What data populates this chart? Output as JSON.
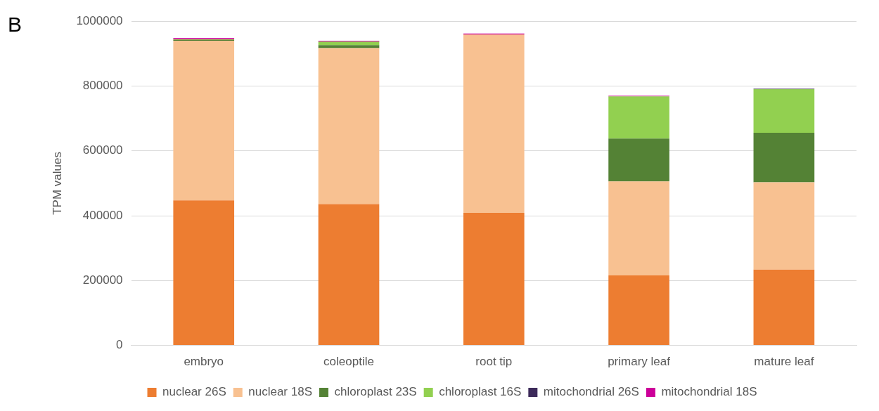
{
  "chart_data": {
    "type": "bar",
    "title": "B",
    "ylabel": "TPM values",
    "stacked": true,
    "categories": [
      "embryo",
      "coleoptile",
      "root tip",
      "primary leaf",
      "mature leaf"
    ],
    "series": [
      {
        "name": "nuclear 26S",
        "color": "#ed7d31",
        "values": [
          447000,
          436000,
          409000,
          216000,
          234000
        ]
      },
      {
        "name": "nuclear 18S",
        "color": "#f8c191",
        "values": [
          493000,
          481000,
          550000,
          290000,
          269000
        ]
      },
      {
        "name": "chloroplast 23S",
        "color": "#548235",
        "values": [
          2000,
          9000,
          null,
          132000,
          153000
        ]
      },
      {
        "name": "chloroplast 16S",
        "color": "#92d050",
        "values": [
          2000,
          11000,
          null,
          130000,
          134000
        ]
      },
      {
        "name": "mitochondrial 26S",
        "color": "#3c2a5a",
        "values": [
          null,
          null,
          null,
          null,
          2000
        ]
      },
      {
        "name": "mitochondrial 18S",
        "color": "#cc0099",
        "values": [
          4000,
          3000,
          3000,
          2000,
          null
        ]
      }
    ],
    "ylim": [
      0,
      1000000
    ],
    "yticks": [
      0,
      200000,
      400000,
      600000,
      800000,
      1000000
    ],
    "grid": "y",
    "legend": "bottom"
  }
}
